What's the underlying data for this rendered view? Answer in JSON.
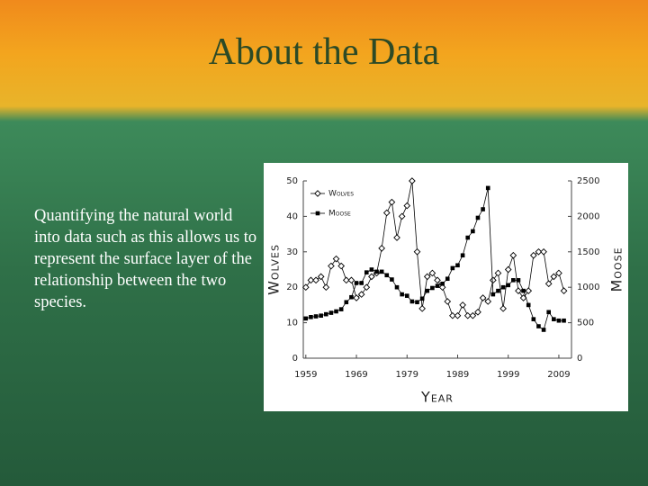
{
  "title": "About the Data",
  "body": "Quantifying the natural world into data such as this allows us to represent the surface layer of the relationship between the two species.",
  "chart_data": {
    "type": "line",
    "xlabel": "Year",
    "ylabel": "Wolves",
    "y2label": "Moose",
    "x": [
      1959,
      1960,
      1961,
      1962,
      1963,
      1964,
      1965,
      1966,
      1967,
      1968,
      1969,
      1970,
      1971,
      1972,
      1973,
      1974,
      1975,
      1976,
      1977,
      1978,
      1979,
      1980,
      1981,
      1982,
      1983,
      1984,
      1985,
      1986,
      1987,
      1988,
      1989,
      1990,
      1991,
      1992,
      1993,
      1994,
      1995,
      1996,
      1997,
      1998,
      1999,
      2000,
      2001,
      2002,
      2003,
      2004,
      2005,
      2006,
      2007,
      2008,
      2009,
      2010
    ],
    "series": [
      {
        "name": "Wolves",
        "color": "#000000",
        "marker": "open-diamond",
        "axis": "y",
        "values": [
          20,
          22,
          22,
          23,
          20,
          26,
          28,
          26,
          22,
          22,
          17,
          18,
          20,
          23,
          24,
          31,
          41,
          44,
          34,
          40,
          43,
          50,
          30,
          14,
          23,
          24,
          22,
          20,
          16,
          12,
          12,
          15,
          12,
          12,
          13,
          17,
          16,
          22,
          24,
          14,
          25,
          29,
          19,
          17,
          19,
          29,
          30,
          30,
          21,
          23,
          24,
          19
        ]
      },
      {
        "name": "Moose",
        "color": "#000000",
        "marker": "filled-square",
        "axis": "y2",
        "values": [
          560,
          580,
          590,
          600,
          620,
          640,
          660,
          690,
          790,
          860,
          1060,
          1060,
          1210,
          1250,
          1220,
          1220,
          1170,
          1110,
          1000,
          900,
          880,
          800,
          790,
          840,
          950,
          990,
          1020,
          1050,
          1120,
          1270,
          1310,
          1450,
          1700,
          1790,
          1980,
          2100,
          2400,
          900,
          950,
          1000,
          1030,
          1100,
          1100,
          950,
          750,
          550,
          450,
          400,
          650,
          550,
          530,
          530
        ]
      }
    ],
    "xlim": [
      1958.5,
      2011.5
    ],
    "xticks": [
      1959,
      1969,
      1979,
      1989,
      1999,
      2009
    ],
    "ylim": [
      0,
      50
    ],
    "yticks": [
      0,
      10,
      20,
      30,
      40,
      50
    ],
    "y2lim": [
      0,
      2500
    ],
    "y2ticks": [
      0,
      500,
      1000,
      1500,
      2000,
      2500
    ],
    "legend": "upper left",
    "grid": false
  }
}
